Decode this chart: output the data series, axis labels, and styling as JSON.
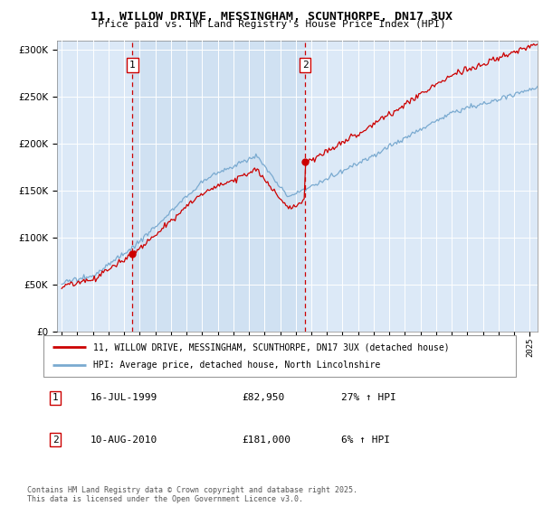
{
  "title_line1": "11, WILLOW DRIVE, MESSINGHAM, SCUNTHORPE, DN17 3UX",
  "title_line2": "Price paid vs. HM Land Registry's House Price Index (HPI)",
  "legend_line1": "11, WILLOW DRIVE, MESSINGHAM, SCUNTHORPE, DN17 3UX (detached house)",
  "legend_line2": "HPI: Average price, detached house, North Lincolnshire",
  "annotation1_label": "1",
  "annotation1_date": "16-JUL-1999",
  "annotation1_price": "£82,950",
  "annotation1_hpi": "27% ↑ HPI",
  "annotation2_label": "2",
  "annotation2_date": "10-AUG-2010",
  "annotation2_price": "£181,000",
  "annotation2_hpi": "6% ↑ HPI",
  "footer": "Contains HM Land Registry data © Crown copyright and database right 2025.\nThis data is licensed under the Open Government Licence v3.0.",
  "sale1_year": 1999.54,
  "sale1_price": 82950,
  "sale2_year": 2010.61,
  "sale2_price": 181000,
  "red_color": "#cc0000",
  "blue_color": "#7aaad0",
  "background_color": "#dce9f7",
  "shade_color": "#c8ddf0",
  "grid_color": "#ffffff",
  "vline_color": "#cc0000",
  "ylim": [
    0,
    310000
  ],
  "xlim_start": 1994.7,
  "xlim_end": 2025.5,
  "xticks": [
    1995,
    1996,
    1997,
    1998,
    1999,
    2000,
    2001,
    2002,
    2003,
    2004,
    2005,
    2006,
    2007,
    2008,
    2009,
    2010,
    2011,
    2012,
    2013,
    2014,
    2015,
    2016,
    2017,
    2018,
    2019,
    2020,
    2021,
    2022,
    2023,
    2024,
    2025
  ]
}
